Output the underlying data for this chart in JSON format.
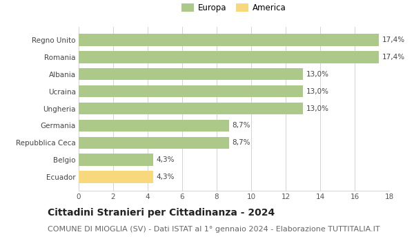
{
  "categories": [
    "Ecuador",
    "Belgio",
    "Repubblica Ceca",
    "Germania",
    "Ungheria",
    "Ucraina",
    "Albania",
    "Romania",
    "Regno Unito"
  ],
  "values": [
    4.3,
    4.3,
    8.7,
    8.7,
    13.0,
    13.0,
    13.0,
    17.4,
    17.4
  ],
  "labels": [
    "4,3%",
    "4,3%",
    "8,7%",
    "8,7%",
    "13,0%",
    "13,0%",
    "13,0%",
    "17,4%",
    "17,4%"
  ],
  "colors": [
    "#f7d87c",
    "#adc98a",
    "#adc98a",
    "#adc98a",
    "#adc98a",
    "#adc98a",
    "#adc98a",
    "#adc98a",
    "#adc98a"
  ],
  "legend_europa_color": "#adc98a",
  "legend_america_color": "#f7d87c",
  "xlim": [
    0,
    18
  ],
  "xticks": [
    0,
    2,
    4,
    6,
    8,
    10,
    12,
    14,
    16,
    18
  ],
  "title": "Cittadini Stranieri per Cittadinanza - 2024",
  "subtitle": "COMUNE DI MIOGLIA (SV) - Dati ISTAT al 1° gennaio 2024 - Elaborazione TUTTITALIA.IT",
  "title_fontsize": 10,
  "subtitle_fontsize": 8,
  "background_color": "#ffffff",
  "bar_edge_color": "none",
  "grid_color": "#cccccc"
}
